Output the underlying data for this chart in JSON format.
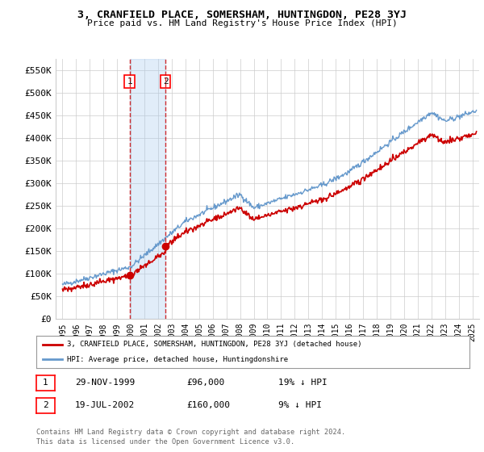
{
  "title": "3, CRANFIELD PLACE, SOMERSHAM, HUNTINGDON, PE28 3YJ",
  "subtitle": "Price paid vs. HM Land Registry's House Price Index (HPI)",
  "ylim": [
    0,
    575000
  ],
  "yticks": [
    0,
    50000,
    100000,
    150000,
    200000,
    250000,
    300000,
    350000,
    400000,
    450000,
    500000,
    550000
  ],
  "ytick_labels": [
    "£0",
    "£50K",
    "£100K",
    "£150K",
    "£200K",
    "£250K",
    "£300K",
    "£350K",
    "£400K",
    "£450K",
    "£500K",
    "£550K"
  ],
  "sale1_date": 1999.91,
  "sale1_price": 96000,
  "sale1_label": "1",
  "sale2_date": 2002.54,
  "sale2_price": 160000,
  "sale2_label": "2",
  "hpi_color": "#6699cc",
  "price_color": "#cc0000",
  "shade_color": "#aaccee",
  "legend_line1": "3, CRANFIELD PLACE, SOMERSHAM, HUNTINGDON, PE28 3YJ (detached house)",
  "legend_line2": "HPI: Average price, detached house, Huntingdonshire",
  "table_row1": [
    "1",
    "29-NOV-1999",
    "£96,000",
    "19% ↓ HPI"
  ],
  "table_row2": [
    "2",
    "19-JUL-2002",
    "£160,000",
    "9% ↓ HPI"
  ],
  "footnote1": "Contains HM Land Registry data © Crown copyright and database right 2024.",
  "footnote2": "This data is licensed under the Open Government Licence v3.0.",
  "background_color": "#ffffff",
  "grid_color": "#cccccc",
  "xlim_start": 1994.5,
  "xlim_end": 2025.5
}
